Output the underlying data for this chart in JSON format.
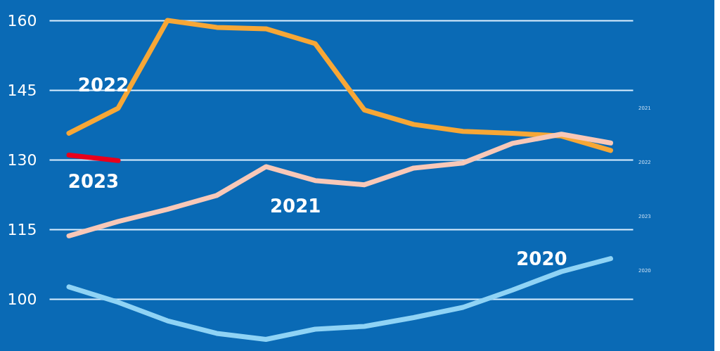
{
  "chart_data": {
    "type": "line",
    "categories": [
      null,
      null,
      null,
      null,
      null,
      null,
      null,
      null,
      null,
      null,
      null,
      null
    ],
    "series": [
      {
        "name": "2022",
        "color": "#f7a736",
        "values": [
          135.7,
          141.1,
          160,
          158.5,
          158.2,
          155,
          140.7,
          137.6,
          136.1,
          135.7,
          135.1,
          132
        ]
      },
      {
        "name": "2021",
        "color": "#f8c8b8",
        "values": [
          113.6,
          116.7,
          119.3,
          122.3,
          128.5,
          125.5,
          124.6,
          128.2,
          129.3,
          133.5,
          135.5,
          133.6
        ]
      },
      {
        "name": "2020",
        "color": "#8fd3f5",
        "values": [
          102.6,
          99.3,
          95.3,
          92.6,
          91.3,
          93.5,
          94.1,
          96,
          98.2,
          101.9,
          105.9,
          108.7
        ]
      },
      {
        "name": "2023",
        "color": "#e8001c",
        "values": [
          131,
          129.8,
          null,
          null,
          null,
          null,
          null,
          null,
          null,
          null,
          null,
          null
        ]
      }
    ],
    "ylim": [
      88.8,
      160
    ],
    "yticks": [
      100,
      115,
      130,
      145,
      160
    ],
    "grid": "y",
    "tick_labels": "y",
    "marker": "none",
    "line_style": "solid",
    "annotations": [
      "2021",
      "2022",
      "2023",
      "2020"
    ]
  }
}
